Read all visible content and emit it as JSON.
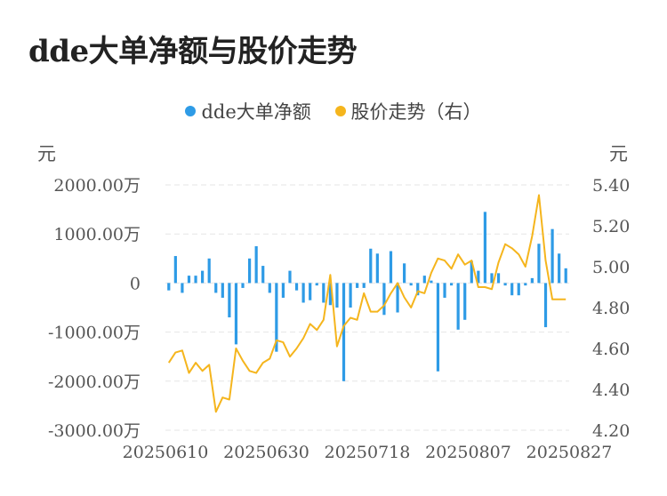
{
  "title": "dde大单净额与股价走势",
  "legend": [
    {
      "label": "dde大单净额",
      "color": "#2e9be6"
    },
    {
      "label": "股价走势（右）",
      "color": "#f5b51d"
    }
  ],
  "units": {
    "left": "元",
    "right": "元"
  },
  "chart_data": {
    "type": "bar+line",
    "x_tick_labels": [
      "20250610",
      "20250630",
      "20250718",
      "20250807",
      "20250827"
    ],
    "y_left": {
      "ticks": [
        "2000.00万",
        "1000.00万",
        "0",
        "-1000.00万",
        "-2000.00万",
        "-3000.00万"
      ],
      "range": [
        -3000,
        2000
      ],
      "unit": "万元"
    },
    "y_right": {
      "ticks": [
        "5.40",
        "5.20",
        "5.00",
        "4.80",
        "4.60",
        "4.40",
        "4.20"
      ],
      "range": [
        4.2,
        5.4
      ]
    },
    "series": [
      {
        "name": "dde大单净额",
        "type": "bar",
        "values": [
          -150,
          550,
          -200,
          150,
          150,
          250,
          500,
          -200,
          -300,
          -700,
          -1250,
          -100,
          500,
          750,
          350,
          -200,
          -1400,
          -300,
          250,
          -150,
          -400,
          -350,
          -50,
          -400,
          -450,
          -500,
          -2000,
          -500,
          -100,
          -100,
          700,
          600,
          -650,
          650,
          -600,
          400,
          -50,
          -250,
          150,
          50,
          -1800,
          -300,
          -50,
          -950,
          -750,
          450,
          250,
          1450,
          200,
          200,
          -50,
          -250,
          -250,
          -50,
          100,
          800,
          -900,
          1100,
          600,
          300
        ]
      },
      {
        "name": "股价走势（右）",
        "type": "line",
        "values": [
          4.53,
          4.58,
          4.59,
          4.48,
          4.53,
          4.49,
          4.52,
          4.29,
          4.36,
          4.35,
          4.6,
          4.54,
          4.49,
          4.48,
          4.53,
          4.55,
          4.64,
          4.63,
          4.56,
          4.6,
          4.65,
          4.72,
          4.69,
          4.74,
          4.96,
          4.61,
          4.71,
          4.75,
          4.74,
          4.87,
          4.78,
          4.78,
          4.81,
          4.87,
          4.92,
          4.85,
          4.8,
          4.88,
          4.87,
          4.97,
          5.04,
          5.03,
          4.99,
          5.06,
          5.01,
          5.03,
          4.9,
          4.9,
          4.89,
          5.02,
          5.11,
          5.09,
          5.06,
          5.0,
          5.15,
          5.35,
          5.03,
          4.84,
          4.84,
          4.84
        ]
      }
    ],
    "grid": true,
    "legend_position": "top-center"
  }
}
